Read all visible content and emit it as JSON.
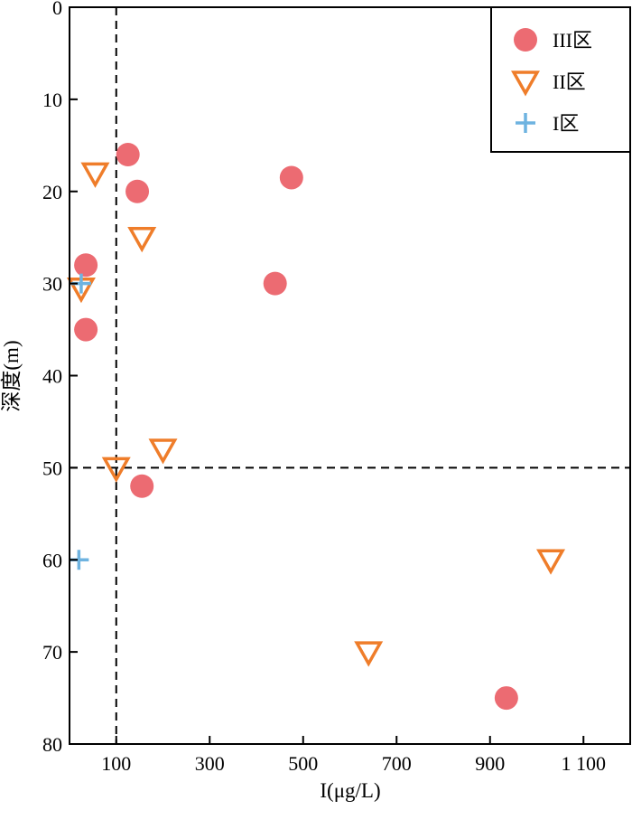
{
  "chart_data": {
    "type": "scatter",
    "xlabel": "I(μg/L)",
    "ylabel": "深度(m)",
    "xlim": [
      0,
      1200
    ],
    "ylim": [
      0,
      80
    ],
    "y_inverted": true,
    "x_axis_position": "bottom",
    "y_axis_position": "left",
    "x_ticks": [
      100,
      300,
      500,
      700,
      900,
      1100
    ],
    "x_tick_labels": [
      "100",
      "300",
      "500",
      "700",
      "900",
      "1 100"
    ],
    "y_ticks": [
      0,
      10,
      20,
      30,
      40,
      50,
      60,
      70,
      80
    ],
    "y_tick_labels": [
      "0",
      "10",
      "20",
      "30",
      "40",
      "50",
      "60",
      "70",
      "80"
    ],
    "grid": false,
    "reference_lines": {
      "x": 100,
      "y": 50,
      "style": "dashed"
    },
    "legend_position": "top-right",
    "series": [
      {
        "name": "III区",
        "marker": "circle",
        "color": "#ec6b72",
        "points": [
          {
            "x": 125,
            "y": 16
          },
          {
            "x": 145,
            "y": 20
          },
          {
            "x": 475,
            "y": 18.5
          },
          {
            "x": 35,
            "y": 28
          },
          {
            "x": 440,
            "y": 30
          },
          {
            "x": 35,
            "y": 35
          },
          {
            "x": 155,
            "y": 52
          },
          {
            "x": 935,
            "y": 75
          }
        ]
      },
      {
        "name": "II区",
        "marker": "triangle-down",
        "color": "#ef7d2a",
        "points": [
          {
            "x": 55,
            "y": 18
          },
          {
            "x": 155,
            "y": 25
          },
          {
            "x": 25,
            "y": 30.5
          },
          {
            "x": 200,
            "y": 48
          },
          {
            "x": 100,
            "y": 50
          },
          {
            "x": 1030,
            "y": 60
          },
          {
            "x": 640,
            "y": 70
          }
        ]
      },
      {
        "name": "I区",
        "marker": "plus",
        "color": "#6eb3e0",
        "points": [
          {
            "x": 25,
            "y": 30
          },
          {
            "x": 20,
            "y": 60
          }
        ]
      }
    ]
  }
}
